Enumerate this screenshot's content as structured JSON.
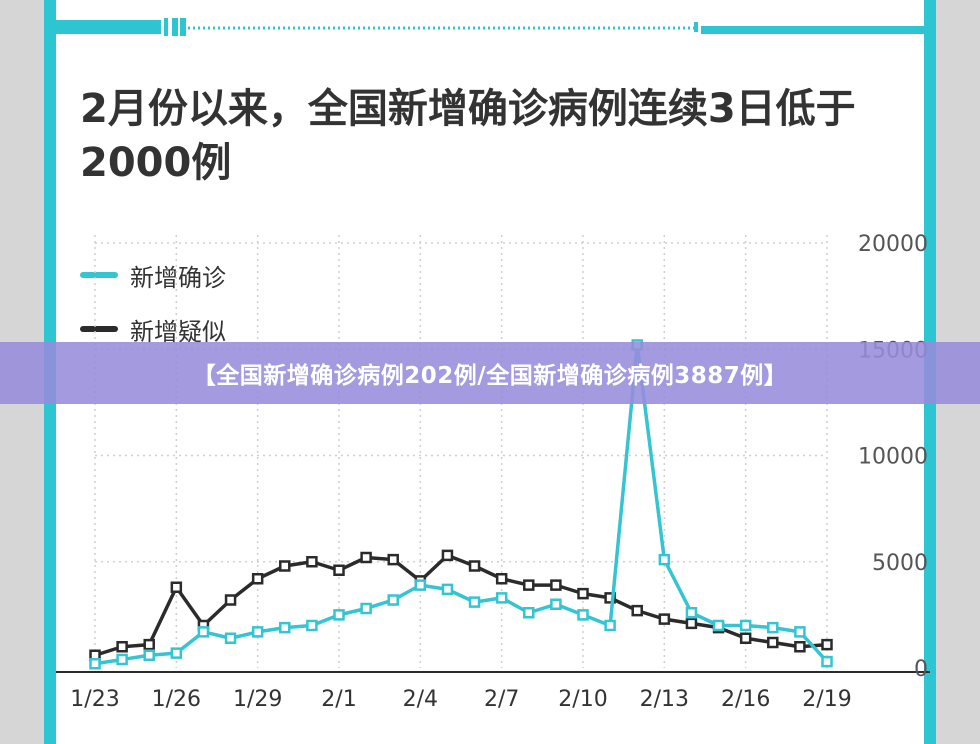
{
  "title": "2月份以来，全国新增确诊病例连续3日低于2000例",
  "banner": "【全国新增确诊病例202例/全国新增确诊病例3887例】",
  "colors": {
    "confirmed": "#35c4d1",
    "suspected": "#2b2b2b",
    "frame": "#2ec5d2",
    "banner": "#968cdc"
  },
  "chart_data": {
    "type": "line",
    "x": [
      "1/23",
      "1/24",
      "1/25",
      "1/26",
      "1/27",
      "1/28",
      "1/29",
      "1/30",
      "1/31",
      "2/1",
      "2/2",
      "2/3",
      "2/4",
      "2/5",
      "2/6",
      "2/7",
      "2/8",
      "2/9",
      "2/10",
      "2/11",
      "2/12",
      "2/13",
      "2/14",
      "2/15",
      "2/16",
      "2/17",
      "2/18",
      "2/19"
    ],
    "xticks": [
      "1/23",
      "1/26",
      "1/29",
      "2/1",
      "2/4",
      "2/7",
      "2/10",
      "2/13",
      "2/16",
      "2/19"
    ],
    "yticks": [
      "0",
      "5000",
      "10000",
      "15000",
      "20000"
    ],
    "ylim": [
      0,
      20000
    ],
    "grid": true,
    "legend_position": "top-left",
    "series": [
      {
        "name": "新增确诊",
        "color": "#35c4d1",
        "values": [
          200,
          400,
          600,
          700,
          1700,
          1400,
          1700,
          1900,
          2000,
          2500,
          2800,
          3200,
          3900,
          3700,
          3100,
          3300,
          2600,
          3000,
          2500,
          2000,
          15200,
          5100,
          2600,
          2000,
          2000,
          1900,
          1700,
          300
        ]
      },
      {
        "name": "新增疑似",
        "color": "#2b2b2b",
        "values": [
          600,
          1000,
          1100,
          3800,
          2000,
          3200,
          4200,
          4800,
          5000,
          4600,
          5200,
          5100,
          4100,
          5300,
          4800,
          4200,
          3900,
          3900,
          3500,
          3300,
          2700,
          2300,
          2100,
          1900,
          1400,
          1200,
          1000,
          1100
        ]
      }
    ]
  }
}
